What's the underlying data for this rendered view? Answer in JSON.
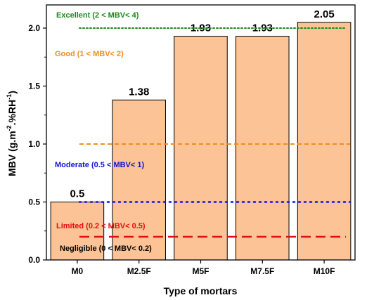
{
  "chart_data": {
    "type": "bar",
    "categories": [
      "M0",
      "M2.5F",
      "M5F",
      "M7.5F",
      "M10F"
    ],
    "values": [
      0.5,
      1.38,
      1.93,
      1.93,
      2.05
    ],
    "value_labels": [
      "0.5",
      "1.38",
      "1.93",
      "1.93",
      "2.05"
    ],
    "xlabel": "Type of mortars",
    "ylabel_main": "MBV (g.m",
    "ylabel_sup1": "-2",
    "ylabel_mid": ".%RH",
    "ylabel_sup2": "-1",
    "ylabel_end": ")",
    "ylim": [
      0,
      2.2
    ],
    "yticks": [
      "0.0",
      "0.5",
      "1.0",
      "1.5",
      "2.0"
    ],
    "bar_color": "#fbc396",
    "bar_edge": "#000000",
    "grid": false,
    "thresholds": [
      {
        "label": "Excellent (2 < MBV< 4)",
        "value": 2.0,
        "color": "#1a8a1a",
        "style": "dotted"
      },
      {
        "label": "Good (1 < MBV< 2)",
        "value": 1.0,
        "color": "#f28c1e",
        "style": "dashed"
      },
      {
        "label": "Moderate (0.5 < MBV< 1)",
        "value": 0.5,
        "color": "#1010e0",
        "style": "dotted"
      },
      {
        "label": "Limited (0.2 < MBV< 0.5)",
        "value": 0.2,
        "color": "#e01010",
        "style": "dashed"
      },
      {
        "label": "Negligible (0 < MBV< 0.2)",
        "color": "#000000"
      }
    ]
  }
}
